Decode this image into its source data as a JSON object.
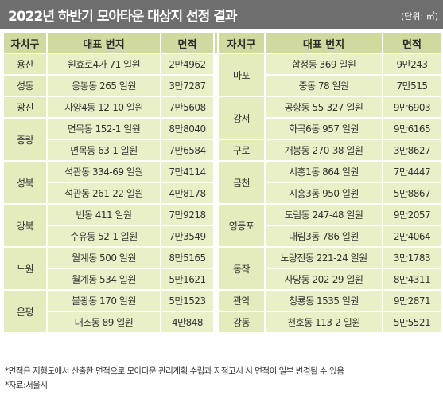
{
  "header": {
    "title": "2022년 하반기 모아타운 대상지 선정 결과",
    "unit": "(단위: ㎡)"
  },
  "columns": {
    "district": "자치구",
    "address": "대표 번지",
    "area": "면적"
  },
  "left_table": [
    {
      "district": "용산",
      "rows": [
        {
          "address": "원효로4가 71 일원",
          "area": "2만4962"
        }
      ]
    },
    {
      "district": "성동",
      "rows": [
        {
          "address": "응봉동 265 일원",
          "area": "3만7287"
        }
      ]
    },
    {
      "district": "광진",
      "rows": [
        {
          "address": "자양4동 12-10 일원",
          "area": "7만5608"
        }
      ]
    },
    {
      "district": "중랑",
      "rows": [
        {
          "address": "면목동 152-1 일원",
          "area": "8만8040"
        },
        {
          "address": "면목동 63-1 일원",
          "area": "7만6584"
        }
      ]
    },
    {
      "district": "성북",
      "rows": [
        {
          "address": "석관동 334-69 일원",
          "area": "7만4114"
        },
        {
          "address": "석관동 261-22 일원",
          "area": "4만8178"
        }
      ]
    },
    {
      "district": "강북",
      "rows": [
        {
          "address": "번동 411 일원",
          "area": "7만9218"
        },
        {
          "address": "수유동 52-1 일원",
          "area": "7만3549"
        }
      ]
    },
    {
      "district": "노원",
      "rows": [
        {
          "address": "월계동 500 일원",
          "area": "8만5165"
        },
        {
          "address": "월계동 534 일원",
          "area": "5만1621"
        }
      ]
    },
    {
      "district": "은평",
      "rows": [
        {
          "address": "불광동 170 일원",
          "area": "5만1523"
        },
        {
          "address": "대조동 89 일원",
          "area": "4만848"
        }
      ]
    }
  ],
  "right_table": [
    {
      "district": "마포",
      "rows": [
        {
          "address": "합정동 369 일원",
          "area": "9만243"
        },
        {
          "address": "중동 78 일원",
          "area": "7만515"
        }
      ]
    },
    {
      "district": "강서",
      "rows": [
        {
          "address": "공항동 55-327 일원",
          "area": "9만6903"
        },
        {
          "address": "화곡6동 957 일원",
          "area": "9만6165"
        }
      ]
    },
    {
      "district": "구로",
      "rows": [
        {
          "address": "개봉동 270-38 일원",
          "area": "3만8627"
        }
      ]
    },
    {
      "district": "금천",
      "rows": [
        {
          "address": "시흥1동 864 일원",
          "area": "7만4447"
        },
        {
          "address": "시흥3동 950 일원",
          "area": "5만8867"
        }
      ]
    },
    {
      "district": "영등포",
      "rows": [
        {
          "address": "도림동 247-48 일원",
          "area": "9만2057"
        },
        {
          "address": "대림3동 786 일원",
          "area": "2만4064"
        }
      ]
    },
    {
      "district": "동작",
      "rows": [
        {
          "address": "노량진동 221-24 일원",
          "area": "3만1783"
        },
        {
          "address": "사당동 202-29 일원",
          "area": "8만4311"
        }
      ]
    },
    {
      "district": "관악",
      "rows": [
        {
          "address": "청룡동 1535 일원",
          "area": "9만2871"
        }
      ]
    },
    {
      "district": "강동",
      "rows": [
        {
          "address": "천호동 113-2 일원",
          "area": "5만5521"
        }
      ]
    }
  ],
  "notes": [
    "*면적은 지형도에서 산출한 면적으로 모아타운 관리계획 수립과 지정고시 시 면적이 일부 변경될 수 있음",
    "*자료:서울시"
  ],
  "colors": {
    "title_bar": "#6e6e6e",
    "header_cell": "#cfd9a0",
    "body_cell": "#e9f0c7"
  }
}
